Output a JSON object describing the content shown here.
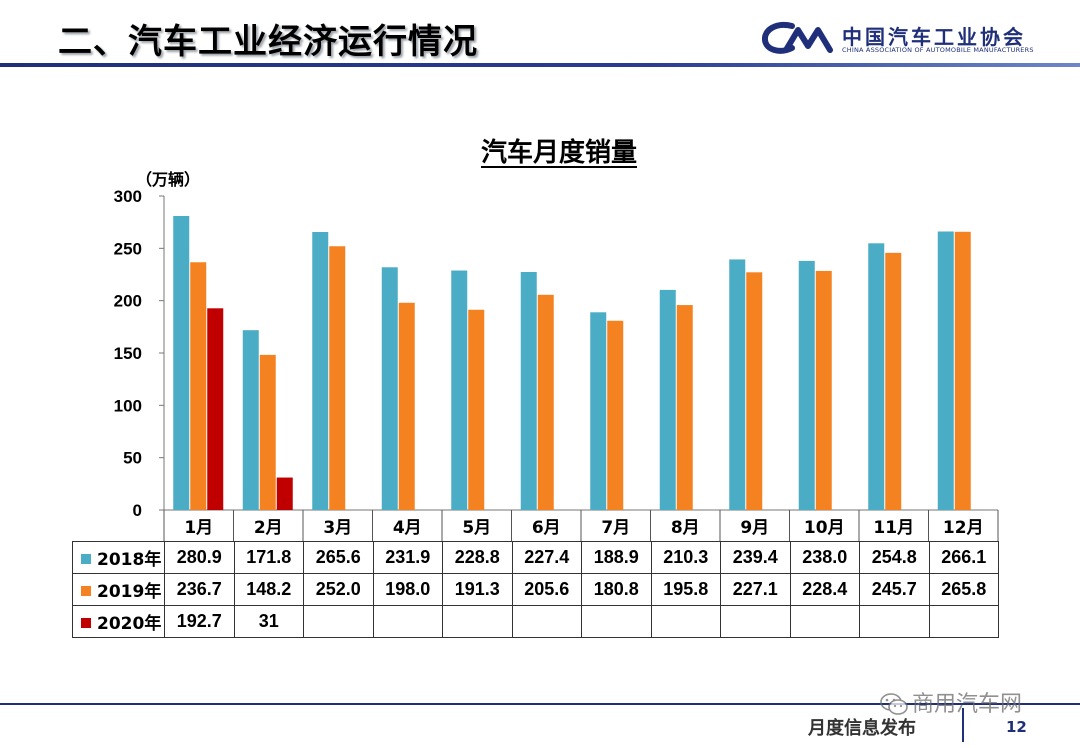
{
  "header": {
    "title": "二、汽车工业经济运行情况",
    "logo_cn": "中国汽车工业协会",
    "logo_en": "CHINA ASSOCIATION OF AUTOMOBILE MANUFACTURERS",
    "logo_mark": "CM",
    "accent_color": "#1f2f7a"
  },
  "chart_data": {
    "type": "bar",
    "title": "汽车月度销量",
    "unit_label": "（万辆）",
    "categories": [
      "1月",
      "2月",
      "3月",
      "4月",
      "5月",
      "6月",
      "7月",
      "8月",
      "9月",
      "10月",
      "11月",
      "12月"
    ],
    "ylim": [
      0,
      300
    ],
    "yticks": [
      0,
      50,
      100,
      150,
      200,
      250,
      300
    ],
    "grid": false,
    "legend": "data-table",
    "series": [
      {
        "name": "2018年",
        "color": "#4bacc6",
        "values": [
          280.9,
          171.8,
          265.6,
          231.9,
          228.8,
          227.4,
          188.9,
          210.3,
          239.4,
          238.0,
          254.8,
          266.1
        ],
        "labels": [
          "280.9",
          "171.8",
          "265.6",
          "231.9",
          "228.8",
          "227.4",
          "188.9",
          "210.3",
          "239.4",
          "238.0",
          "254.8",
          "266.1"
        ]
      },
      {
        "name": "2019年",
        "color": "#f58220",
        "values": [
          236.7,
          148.2,
          252.0,
          198.0,
          191.3,
          205.6,
          180.8,
          195.8,
          227.1,
          228.4,
          245.7,
          265.8
        ],
        "labels": [
          "236.7",
          "148.2",
          "252.0",
          "198.0",
          "191.3",
          "205.6",
          "180.8",
          "195.8",
          "227.1",
          "228.4",
          "245.7",
          "265.8"
        ]
      },
      {
        "name": "2020年",
        "color": "#c00000",
        "values": [
          192.7,
          31,
          null,
          null,
          null,
          null,
          null,
          null,
          null,
          null,
          null,
          null
        ],
        "labels": [
          "192.7",
          "31",
          "",
          "",
          "",
          "",
          "",
          "",
          "",
          "",
          "",
          ""
        ]
      }
    ]
  },
  "footer": {
    "publication": "月度信息发布",
    "page_number": "12",
    "watermark": "商用汽车网",
    "watermark_icon": "wechat-icon"
  }
}
